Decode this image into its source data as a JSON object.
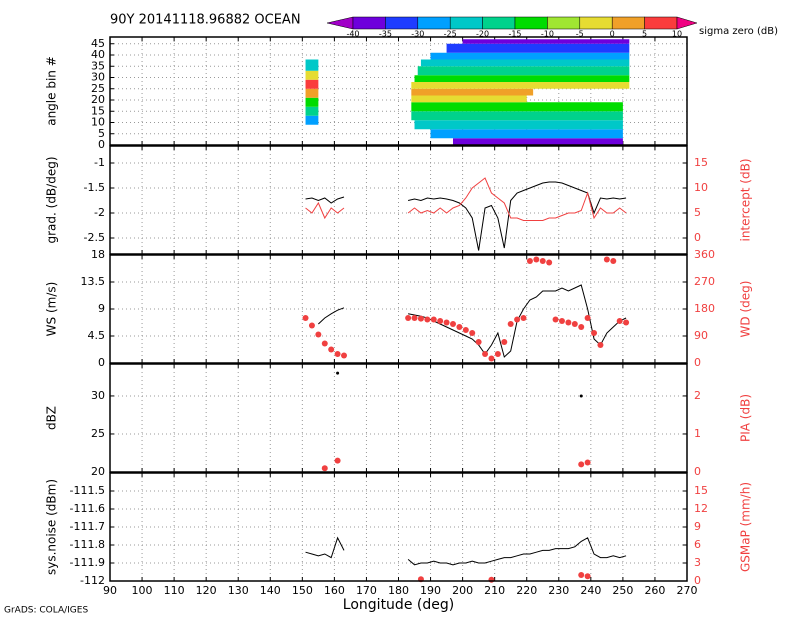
{
  "chart_data": [
    {
      "type": "heatmap",
      "title": "90Y 20141118.96882 OCEAN",
      "ylabel": "angle bin #",
      "xlim": [
        90,
        270
      ],
      "xticks": [
        90,
        100,
        110,
        120,
        130,
        140,
        150,
        160,
        170,
        180,
        190,
        200,
        210,
        220,
        230,
        240,
        250,
        260,
        270
      ],
      "ylim": [
        0,
        48
      ],
      "yticks": [
        0,
        5,
        10,
        15,
        20,
        25,
        30,
        35,
        40,
        45
      ],
      "grid": true,
      "colorbar": {
        "label": "sigma zero (dB)",
        "levels": [
          -40,
          -35,
          -30,
          -25,
          -20,
          -15,
          -10,
          -5,
          0,
          5,
          10
        ],
        "colors": [
          "#a000c8",
          "#6e00dc",
          "#1e3cff",
          "#00a0ff",
          "#00c8c8",
          "#00d28c",
          "#00dc00",
          "#a0e632",
          "#e6dc32",
          "#f0a028",
          "#fa3c3c",
          "#f00082"
        ]
      },
      "cells": [
        {
          "x": [
            151,
            155
          ],
          "bins": [
            9,
            13
          ],
          "value": -30
        },
        {
          "x": [
            151,
            155
          ],
          "bins": [
            13,
            17
          ],
          "value": -20
        },
        {
          "x": [
            151,
            155
          ],
          "bins": [
            17,
            21
          ],
          "value": -15
        },
        {
          "x": [
            151,
            155
          ],
          "bins": [
            21,
            25
          ],
          "value": 0
        },
        {
          "x": [
            151,
            155
          ],
          "bins": [
            25,
            29
          ],
          "value": 5
        },
        {
          "x": [
            151,
            155
          ],
          "bins": [
            29,
            33
          ],
          "value": -5
        },
        {
          "x": [
            151,
            155
          ],
          "bins": [
            33,
            38
          ],
          "value": -25
        },
        {
          "x": [
            197,
            250
          ],
          "bins": [
            0,
            3
          ],
          "value": -40
        },
        {
          "x": [
            190,
            250
          ],
          "bins": [
            3,
            7
          ],
          "value": -30
        },
        {
          "x": [
            185,
            250
          ],
          "bins": [
            7,
            11
          ],
          "value": -25
        },
        {
          "x": [
            184,
            250
          ],
          "bins": [
            11,
            15
          ],
          "value": -20
        },
        {
          "x": [
            184,
            250
          ],
          "bins": [
            15,
            19
          ],
          "value": -15
        },
        {
          "x": [
            184,
            220
          ],
          "bins": [
            19,
            22
          ],
          "value": -5
        },
        {
          "x": [
            184,
            222
          ],
          "bins": [
            22,
            25
          ],
          "value": 0
        },
        {
          "x": [
            184,
            252
          ],
          "bins": [
            25,
            28
          ],
          "value": -5
        },
        {
          "x": [
            185,
            252
          ],
          "bins": [
            28,
            31
          ],
          "value": -15
        },
        {
          "x": [
            186,
            252
          ],
          "bins": [
            31,
            35
          ],
          "value": -20
        },
        {
          "x": [
            187,
            252
          ],
          "bins": [
            35,
            38
          ],
          "value": -25
        },
        {
          "x": [
            190,
            252
          ],
          "bins": [
            38,
            41
          ],
          "value": -30
        },
        {
          "x": [
            195,
            252
          ],
          "bins": [
            41,
            45
          ],
          "value": -35
        },
        {
          "x": [
            200,
            252
          ],
          "bins": [
            45,
            47
          ],
          "value": -40
        }
      ]
    },
    {
      "type": "line",
      "ylabel": "grad. (dB/deg)",
      "y2label": "intercept (dB)",
      "xlim": [
        90,
        270
      ],
      "xticks": [
        90,
        100,
        110,
        120,
        130,
        140,
        150,
        160,
        170,
        180,
        190,
        200,
        210,
        220,
        230,
        240,
        250,
        260,
        270
      ],
      "ylim": [
        -2.82,
        -0.66
      ],
      "yticks": [
        -2.5,
        -2,
        -1.5,
        -1
      ],
      "y2lim": [
        -3.2,
        18.4
      ],
      "y2ticks": [
        0,
        5,
        10,
        15
      ],
      "grid": true,
      "x": [
        151,
        153,
        155,
        157,
        159,
        161,
        163,
        173,
        183,
        185,
        187,
        189,
        191,
        193,
        195,
        197,
        199,
        201,
        203,
        205,
        207,
        209,
        211,
        213,
        215,
        217,
        219,
        221,
        223,
        225,
        227,
        229,
        231,
        233,
        235,
        237,
        239,
        241,
        243,
        245,
        247,
        249,
        251
      ],
      "series": [
        {
          "color": "#000000",
          "kind": "line",
          "values": [
            -1.72,
            -1.7,
            -1.75,
            -1.7,
            -1.8,
            -1.72,
            -1.68,
            null,
            -1.75,
            -1.72,
            -1.75,
            -1.7,
            -1.72,
            -1.7,
            -1.72,
            -1.75,
            -1.8,
            -1.9,
            -2.1,
            -2.75,
            -1.9,
            -1.85,
            -2.1,
            -2.7,
            -1.75,
            -1.6,
            -1.55,
            -1.5,
            -1.45,
            -1.4,
            -1.38,
            -1.38,
            -1.4,
            -1.45,
            -1.5,
            -1.55,
            -1.6,
            -2.0,
            -1.7,
            -1.72,
            -1.7,
            -1.72,
            -1.7
          ]
        },
        {
          "color": "#f04040",
          "kind": "line",
          "axis": "y2",
          "values": [
            6,
            5,
            7,
            4,
            6,
            5,
            6,
            null,
            5,
            6,
            5,
            5.5,
            5,
            6,
            5,
            6,
            6.5,
            8,
            10,
            11,
            12,
            9,
            8,
            7,
            4,
            4,
            3.5,
            3.5,
            3.5,
            3.5,
            4,
            4,
            4.5,
            5,
            5,
            5.5,
            9,
            4,
            6,
            5,
            5,
            6,
            5
          ]
        }
      ]
    },
    {
      "type": "line",
      "ylabel": "WS (m/s)",
      "y2label": "WD (deg)",
      "xlim": [
        90,
        270
      ],
      "xticks": [
        90,
        100,
        110,
        120,
        130,
        140,
        150,
        160,
        170,
        180,
        190,
        200,
        210,
        220,
        230,
        240,
        250,
        260,
        270
      ],
      "ylim": [
        0,
        18
      ],
      "yticks": [
        0,
        4.5,
        9,
        13.5,
        18
      ],
      "y2lim": [
        0,
        360
      ],
      "y2ticks": [
        0,
        90,
        180,
        270,
        360
      ],
      "grid": true,
      "x": [
        151,
        153,
        155,
        157,
        159,
        161,
        163,
        173,
        183,
        185,
        187,
        189,
        191,
        193,
        195,
        197,
        199,
        201,
        203,
        205,
        207,
        209,
        211,
        213,
        215,
        217,
        219,
        221,
        223,
        225,
        227,
        229,
        231,
        233,
        235,
        237,
        239,
        241,
        243,
        245,
        247,
        249,
        251
      ],
      "series": [
        {
          "color": "#000000",
          "kind": "line",
          "values": [
            null,
            null,
            6.5,
            7.5,
            8.2,
            8.8,
            9.2,
            null,
            8.2,
            8,
            7.8,
            7.5,
            7,
            6.5,
            6,
            5.5,
            5,
            4.5,
            4,
            3,
            1.5,
            3,
            5,
            1,
            2,
            7,
            9,
            10.5,
            11,
            12,
            12,
            12,
            12.5,
            12,
            12.5,
            13,
            9,
            4,
            3,
            5,
            6,
            7,
            7.5
          ]
        },
        {
          "color": "#f04040",
          "kind": "scatter",
          "axis": "y2",
          "values": [
            150,
            125,
            95,
            65,
            45,
            30,
            25,
            null,
            150,
            150,
            148,
            145,
            145,
            140,
            135,
            130,
            120,
            110,
            100,
            70,
            30,
            15,
            30,
            70,
            130,
            145,
            150,
            340,
            345,
            340,
            335,
            145,
            140,
            135,
            130,
            120,
            150,
            100,
            60,
            345,
            340,
            140,
            135
          ]
        }
      ]
    },
    {
      "type": "line",
      "ylabel": "dBZ",
      "y2label": "PIA (dB)",
      "xlim": [
        90,
        270
      ],
      "xticks": [
        90,
        100,
        110,
        120,
        130,
        140,
        150,
        160,
        170,
        180,
        190,
        200,
        210,
        220,
        230,
        240,
        250,
        260,
        270
      ],
      "ylim": [
        20,
        34.2
      ],
      "yticks": [
        20,
        25,
        30
      ],
      "y2lim": [
        0,
        2.84
      ],
      "y2ticks": [
        0,
        1,
        2
      ],
      "grid": true,
      "x": [
        151,
        153,
        155,
        157,
        159,
        161,
        163,
        173,
        183,
        185,
        187,
        189,
        191,
        193,
        195,
        197,
        199,
        201,
        203,
        205,
        207,
        209,
        211,
        213,
        215,
        217,
        219,
        221,
        223,
        225,
        227,
        229,
        231,
        233,
        235,
        237,
        239,
        241,
        243,
        245,
        247,
        249,
        251
      ],
      "series": [
        {
          "color": "#000000",
          "kind": "scatter",
          "values": [
            null,
            null,
            null,
            null,
            null,
            33,
            null,
            null,
            null,
            null,
            null,
            null,
            null,
            null,
            null,
            null,
            null,
            null,
            null,
            null,
            null,
            null,
            null,
            null,
            null,
            null,
            null,
            null,
            null,
            null,
            null,
            null,
            null,
            null,
            null,
            30,
            null,
            null,
            null,
            null,
            null,
            null,
            null
          ]
        },
        {
          "color": "#f04040",
          "kind": "scatter",
          "axis": "y2",
          "values": [
            null,
            null,
            null,
            0.1,
            null,
            0.3,
            null,
            null,
            null,
            null,
            null,
            null,
            null,
            null,
            null,
            null,
            null,
            null,
            null,
            null,
            null,
            null,
            null,
            null,
            null,
            null,
            null,
            null,
            null,
            null,
            null,
            null,
            null,
            null,
            null,
            0.2,
            0.25,
            null,
            null,
            null,
            null,
            null,
            null
          ]
        }
      ]
    },
    {
      "type": "line",
      "ylabel": "sys.noise (dBm)",
      "y2label": "GSMaP (mm/h)",
      "xlabel": "Longitude (deg)",
      "xlim": [
        90,
        270
      ],
      "xticks": [
        90,
        100,
        110,
        120,
        130,
        140,
        150,
        160,
        170,
        180,
        190,
        200,
        210,
        220,
        230,
        240,
        250,
        260,
        270
      ],
      "ylim": [
        -112,
        -111.4
      ],
      "yticks": [
        -112,
        -111.9,
        -111.8,
        -111.7,
        -111.6,
        -111.5
      ],
      "y2lim": [
        0,
        18
      ],
      "y2ticks": [
        0,
        3,
        6,
        9,
        12,
        15
      ],
      "grid": true,
      "x": [
        151,
        153,
        155,
        157,
        159,
        161,
        163,
        173,
        183,
        185,
        187,
        189,
        191,
        193,
        195,
        197,
        199,
        201,
        203,
        205,
        207,
        209,
        211,
        213,
        215,
        217,
        219,
        221,
        223,
        225,
        227,
        229,
        231,
        233,
        235,
        237,
        239,
        241,
        243,
        245,
        247,
        249,
        251
      ],
      "series": [
        {
          "color": "#000000",
          "kind": "line",
          "values": [
            -111.84,
            -111.85,
            -111.86,
            -111.85,
            -111.87,
            -111.76,
            -111.83,
            null,
            -111.88,
            -111.91,
            -111.9,
            -111.9,
            -111.89,
            -111.9,
            -111.9,
            -111.91,
            -111.9,
            -111.9,
            -111.89,
            -111.9,
            -111.9,
            -111.89,
            -111.88,
            -111.87,
            -111.87,
            -111.86,
            -111.85,
            -111.85,
            -111.84,
            -111.83,
            -111.83,
            -111.82,
            -111.82,
            -111.82,
            -111.81,
            -111.78,
            -111.76,
            -111.85,
            -111.87,
            -111.87,
            -111.86,
            -111.87,
            -111.86
          ]
        },
        {
          "color": "#f04040",
          "kind": "scatter",
          "axis": "y2",
          "values": [
            null,
            null,
            null,
            null,
            null,
            null,
            null,
            null,
            null,
            null,
            0.3,
            null,
            null,
            null,
            null,
            null,
            null,
            null,
            null,
            null,
            null,
            0.2,
            null,
            null,
            null,
            null,
            null,
            null,
            null,
            null,
            null,
            null,
            null,
            null,
            null,
            1,
            0.8,
            null,
            null,
            null,
            null,
            null,
            null
          ]
        }
      ]
    }
  ],
  "footer": "GrADS: COLA/IGES"
}
